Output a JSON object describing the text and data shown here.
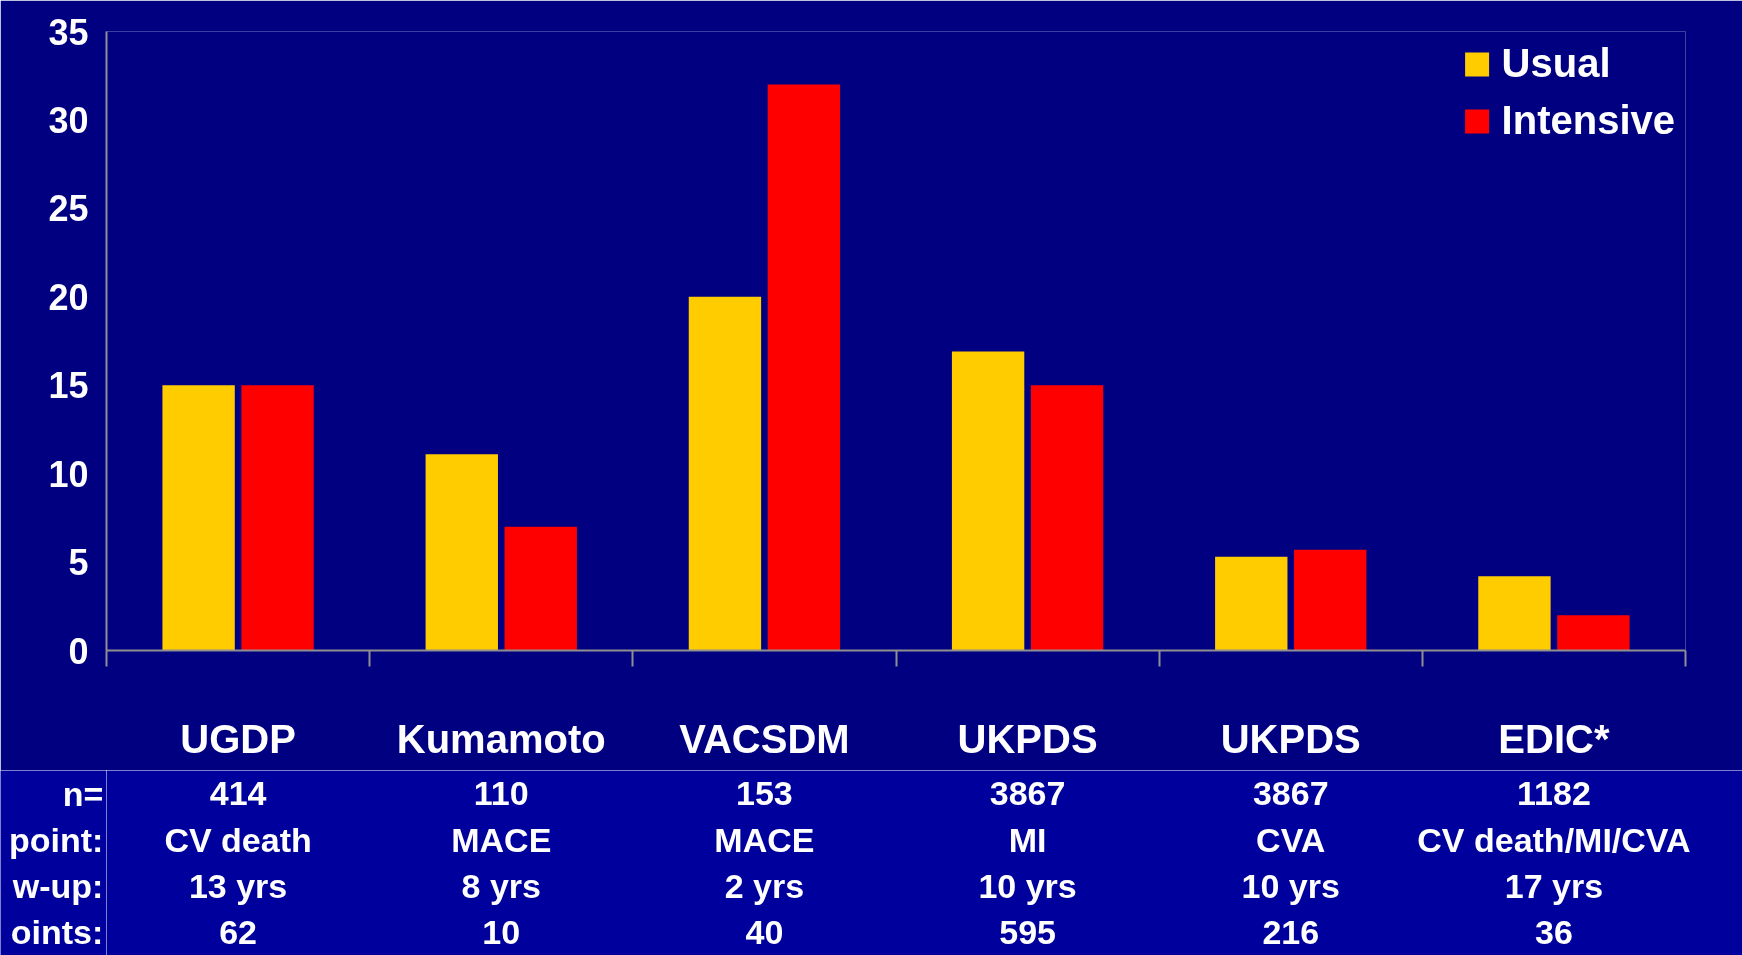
{
  "chart_data": {
    "type": "bar",
    "categories": [
      "UGDP",
      "Kumamoto",
      "VACSDM",
      "UKPDS",
      "UKPDS",
      "EDIC*"
    ],
    "series": [
      {
        "name": "Usual",
        "color": "#ffcc00",
        "values": [
          15,
          11.1,
          20,
          16.9,
          5.3,
          4.2
        ]
      },
      {
        "name": "Intensive",
        "color": "#ff0000",
        "values": [
          15,
          7,
          32,
          15,
          5.7,
          2
        ]
      }
    ],
    "ylim": [
      0,
      35
    ],
    "yticks": [
      0,
      5,
      10,
      15,
      20,
      25,
      30,
      35
    ],
    "grid": false,
    "legend": "top right",
    "annotations": [
      "n=",
      "414",
      "110",
      "153",
      "3867",
      "3867",
      "1182",
      "point:",
      "CV death",
      "MACE",
      "MACE",
      "MI",
      "CVA",
      "CV death/MI/CVA",
      "w-up:",
      "13 yrs",
      "8 yrs",
      "2 yrs",
      "10 yrs",
      "10 yrs",
      "17 yrs",
      "oints:",
      "62",
      "10",
      "40",
      "595",
      "216",
      "36"
    ]
  }
}
